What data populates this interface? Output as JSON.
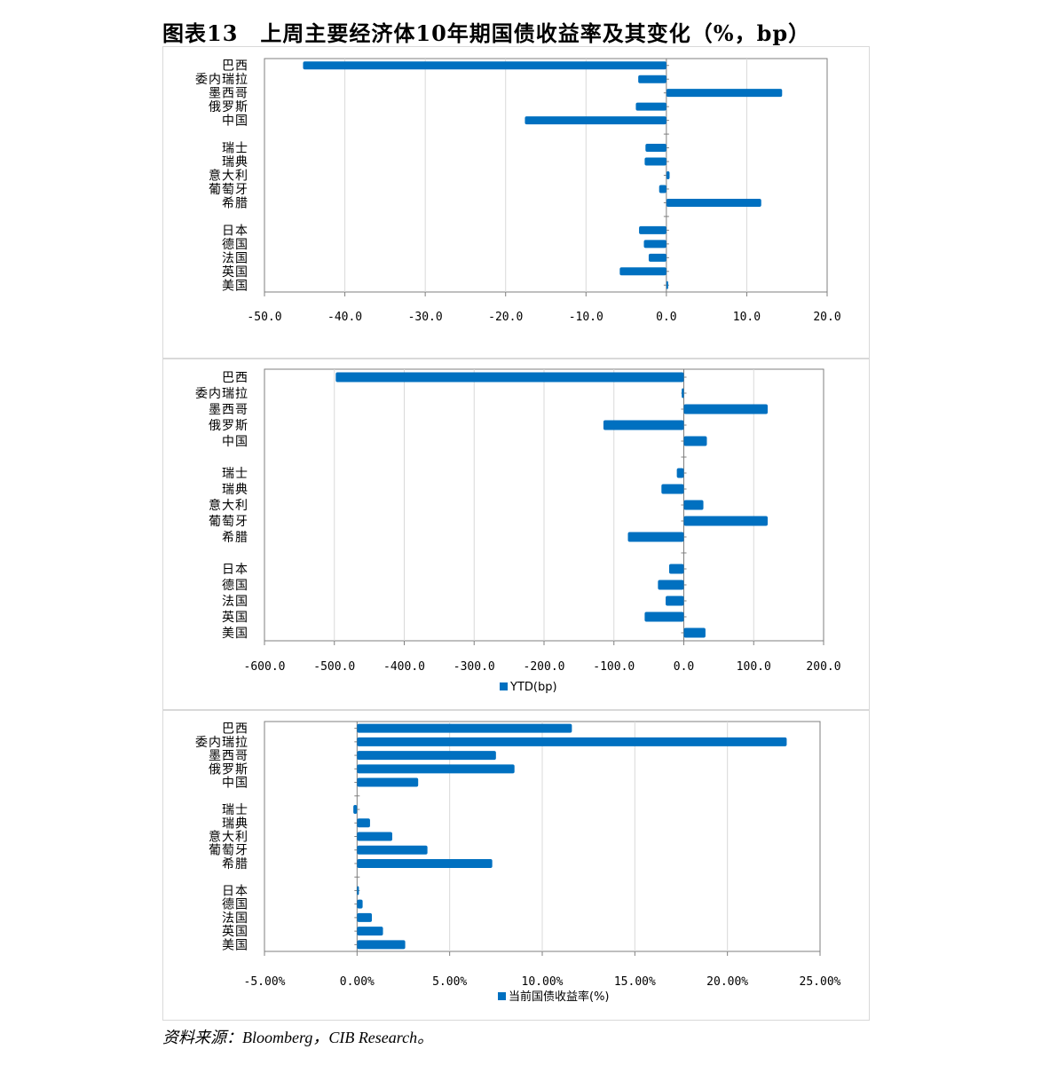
{
  "title": "图表13　上周主要经济体10年期国债收益率及其变化（%，bp）",
  "source": {
    "label": "资料来源：",
    "text": "Bloomberg，CIB Research。"
  },
  "colors": {
    "bar": "#0070C0",
    "grid": "#d9d9d9",
    "axis": "#7f7f7f"
  },
  "chart_data": [
    {
      "type": "bar",
      "orientation": "horizontal",
      "categories": [
        "巴西",
        "委内瑞拉",
        "墨西哥",
        "俄罗斯",
        "中国",
        "",
        "瑞士",
        "瑞典",
        "意大利",
        "葡萄牙",
        "希腊",
        "",
        "日本",
        "德国",
        "法国",
        "英国",
        "美国"
      ],
      "series": [
        {
          "values": [
            -45.2,
            -3.5,
            14.4,
            -3.8,
            -17.6,
            null,
            -2.6,
            -2.7,
            0.4,
            -0.9,
            11.8,
            null,
            -3.4,
            -2.8,
            -2.2,
            -5.8,
            0.1
          ]
        }
      ],
      "xlim": [
        -50,
        20
      ],
      "xticks": [
        -50,
        -40,
        -30,
        -20,
        -10,
        0,
        10,
        20
      ],
      "tick_labels": [
        "-50.0",
        "-40.0",
        "-30.0",
        "-20.0",
        "-10.0",
        "0.0",
        "10.0",
        "20.0"
      ],
      "grid": true,
      "legend": null
    },
    {
      "type": "bar",
      "orientation": "horizontal",
      "categories": [
        "巴西",
        "委内瑞拉",
        "墨西哥",
        "俄罗斯",
        "中国",
        "",
        "瑞士",
        "瑞典",
        "意大利",
        "葡萄牙",
        "希腊",
        "",
        "日本",
        "德国",
        "法国",
        "英国",
        "美国"
      ],
      "series": [
        {
          "name": "YTD(bp)",
          "values": [
            -498,
            -3,
            120,
            -115,
            33,
            null,
            -10,
            -32,
            28,
            120,
            -80,
            null,
            -21,
            -37,
            -26,
            -56,
            31
          ]
        }
      ],
      "xlim": [
        -600,
        200
      ],
      "xticks": [
        -600,
        -500,
        -400,
        -300,
        -200,
        -100,
        0,
        100,
        200
      ],
      "tick_labels": [
        "-600.0",
        "-500.0",
        "-400.0",
        "-300.0",
        "-200.0",
        "-100.0",
        "0.0",
        "100.0",
        "200.0"
      ],
      "grid": true,
      "legend": "bottom"
    },
    {
      "type": "bar",
      "orientation": "horizontal",
      "categories": [
        "巴西",
        "委内瑞拉",
        "墨西哥",
        "俄罗斯",
        "中国",
        "",
        "瑞士",
        "瑞典",
        "意大利",
        "葡萄牙",
        "希腊",
        "",
        "日本",
        "德国",
        "法国",
        "英国",
        "美国"
      ],
      "series": [
        {
          "name": "当前国债收益率(%)",
          "values": [
            11.6,
            23.2,
            7.5,
            8.5,
            3.3,
            null,
            -0.2,
            0.7,
            1.9,
            3.8,
            7.3,
            null,
            0.1,
            0.3,
            0.8,
            1.4,
            2.6
          ]
        }
      ],
      "xlim": [
        -5,
        25
      ],
      "xticks": [
        -5,
        0,
        5,
        10,
        15,
        20,
        25
      ],
      "tick_labels": [
        "-5.00%",
        "0.00%",
        "5.00%",
        "10.00%",
        "15.00%",
        "20.00%",
        "25.00%"
      ],
      "grid": true,
      "legend": "bottom"
    }
  ]
}
